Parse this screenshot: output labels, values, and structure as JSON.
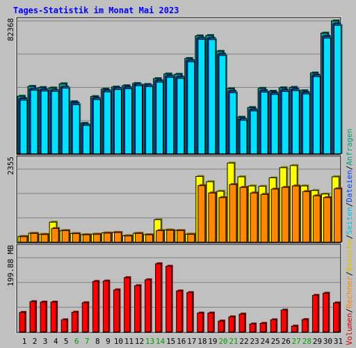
{
  "chart_data": [
    {
      "type": "bar",
      "title": "Tages-Statistik im Monat Mai 2023",
      "categories": [
        "1",
        "2",
        "3",
        "4",
        "5",
        "6",
        "7",
        "8",
        "9",
        "10",
        "11",
        "12",
        "13",
        "14",
        "15",
        "16",
        "17",
        "18",
        "19",
        "20",
        "21",
        "22",
        "23",
        "24",
        "25",
        "26",
        "27",
        "28",
        "29",
        "30",
        "31"
      ],
      "weekend_days": [
        "6",
        "7",
        "13",
        "14",
        "20",
        "21",
        "27",
        "28"
      ],
      "ylabel": "82368",
      "ylim": [
        0,
        82368
      ],
      "grid": true,
      "series": [
        {
          "name": "Anfragen",
          "color": "#00a080",
          "values": [
            35700,
            41800,
            41100,
            40800,
            43400,
            32300,
            18900,
            35500,
            40100,
            41400,
            42200,
            43600,
            43000,
            46600,
            49500,
            49300,
            59100,
            73100,
            73300,
            63500,
            40300,
            22700,
            28700,
            40600,
            38800,
            40900,
            41200,
            39100,
            50100,
            74800,
            82368
          ]
        },
        {
          "name": "Dateien",
          "color": "#0040ff",
          "values": [
            34200,
            40100,
            39800,
            39400,
            41400,
            31500,
            18000,
            34400,
            39100,
            40600,
            41100,
            42800,
            42200,
            45300,
            48200,
            47600,
            57800,
            71700,
            71600,
            61800,
            38800,
            21500,
            27400,
            39100,
            37700,
            39500,
            40000,
            38000,
            48700,
            72800,
            80500
          ]
        },
        {
          "name": "Seiten",
          "color": "#00e0ff",
          "values": [
            33200,
            39400,
            38900,
            38700,
            40700,
            30400,
            17600,
            33600,
            38300,
            39800,
            40300,
            42200,
            41600,
            44400,
            47400,
            46700,
            57000,
            70900,
            70800,
            60900,
            37800,
            20800,
            26600,
            38200,
            36800,
            38600,
            39100,
            37100,
            47800,
            71700,
            79600
          ]
        }
      ]
    },
    {
      "type": "bar",
      "categories": [
        "1",
        "2",
        "3",
        "4",
        "5",
        "6",
        "7",
        "8",
        "9",
        "10",
        "11",
        "12",
        "13",
        "14",
        "15",
        "16",
        "17",
        "18",
        "19",
        "20",
        "21",
        "22",
        "23",
        "24",
        "25",
        "26",
        "27",
        "28",
        "29",
        "30",
        "31"
      ],
      "ylabel": "2355",
      "ylim": [
        0,
        2355
      ],
      "grid": true,
      "series": [
        {
          "name": "Besuche",
          "color": "#ffff00",
          "values": [
            165,
            255,
            225,
            570,
            330,
            250,
            215,
            230,
            265,
            280,
            185,
            255,
            215,
            640,
            350,
            335,
            230,
            1870,
            1720,
            1450,
            2250,
            1860,
            1600,
            1590,
            1830,
            2120,
            2180,
            1600,
            1470,
            1370,
            1860
          ]
        },
        {
          "name": "Rechner",
          "color": "#ff8800",
          "values": [
            160,
            250,
            220,
            390,
            330,
            245,
            210,
            225,
            260,
            275,
            180,
            250,
            210,
            330,
            340,
            330,
            225,
            1610,
            1400,
            1270,
            1640,
            1560,
            1400,
            1360,
            1510,
            1560,
            1600,
            1440,
            1320,
            1270,
            1520
          ]
        }
      ]
    },
    {
      "type": "bar",
      "categories": [
        "1",
        "2",
        "3",
        "4",
        "5",
        "6",
        "7",
        "8",
        "9",
        "10",
        "11",
        "12",
        "13",
        "14",
        "15",
        "16",
        "17",
        "18",
        "19",
        "20",
        "21",
        "22",
        "23",
        "24",
        "25",
        "26",
        "27",
        "28",
        "29",
        "30",
        "31"
      ],
      "ylabel": "199.88 MB",
      "ylim": [
        0,
        199.88
      ],
      "grid": true,
      "series": [
        {
          "name": "Volumen",
          "color": "#ff0000",
          "values": [
            46.5,
            72,
            71,
            71,
            29,
            47,
            69.5,
            120,
            121,
            100,
            129,
            110,
            124,
            162,
            156,
            97.5,
            93.5,
            45,
            45,
            26,
            36,
            42.5,
            19,
            20.5,
            29,
            52,
            14,
            29.5,
            87,
            92,
            69
          ]
        }
      ]
    }
  ],
  "legend": {
    "sep": "/",
    "items": [
      {
        "label": "Volumen",
        "color": "#cc0000"
      },
      {
        "label": "Rechner",
        "color": "#ff8800"
      },
      {
        "label": "Besuche",
        "color": "#e0c000"
      },
      {
        "label": "Seiten",
        "color": "#00c0e0"
      },
      {
        "label": "Dateien",
        "color": "#0040ff"
      },
      {
        "label": "Anfragen",
        "color": "#00a080"
      }
    ]
  },
  "colors": {
    "background": "#c0c0c0",
    "title": "#0000ff",
    "weekday_label": "#000000",
    "weekend_label": "#00a000",
    "grid": "#808080",
    "outline": "#000000"
  }
}
